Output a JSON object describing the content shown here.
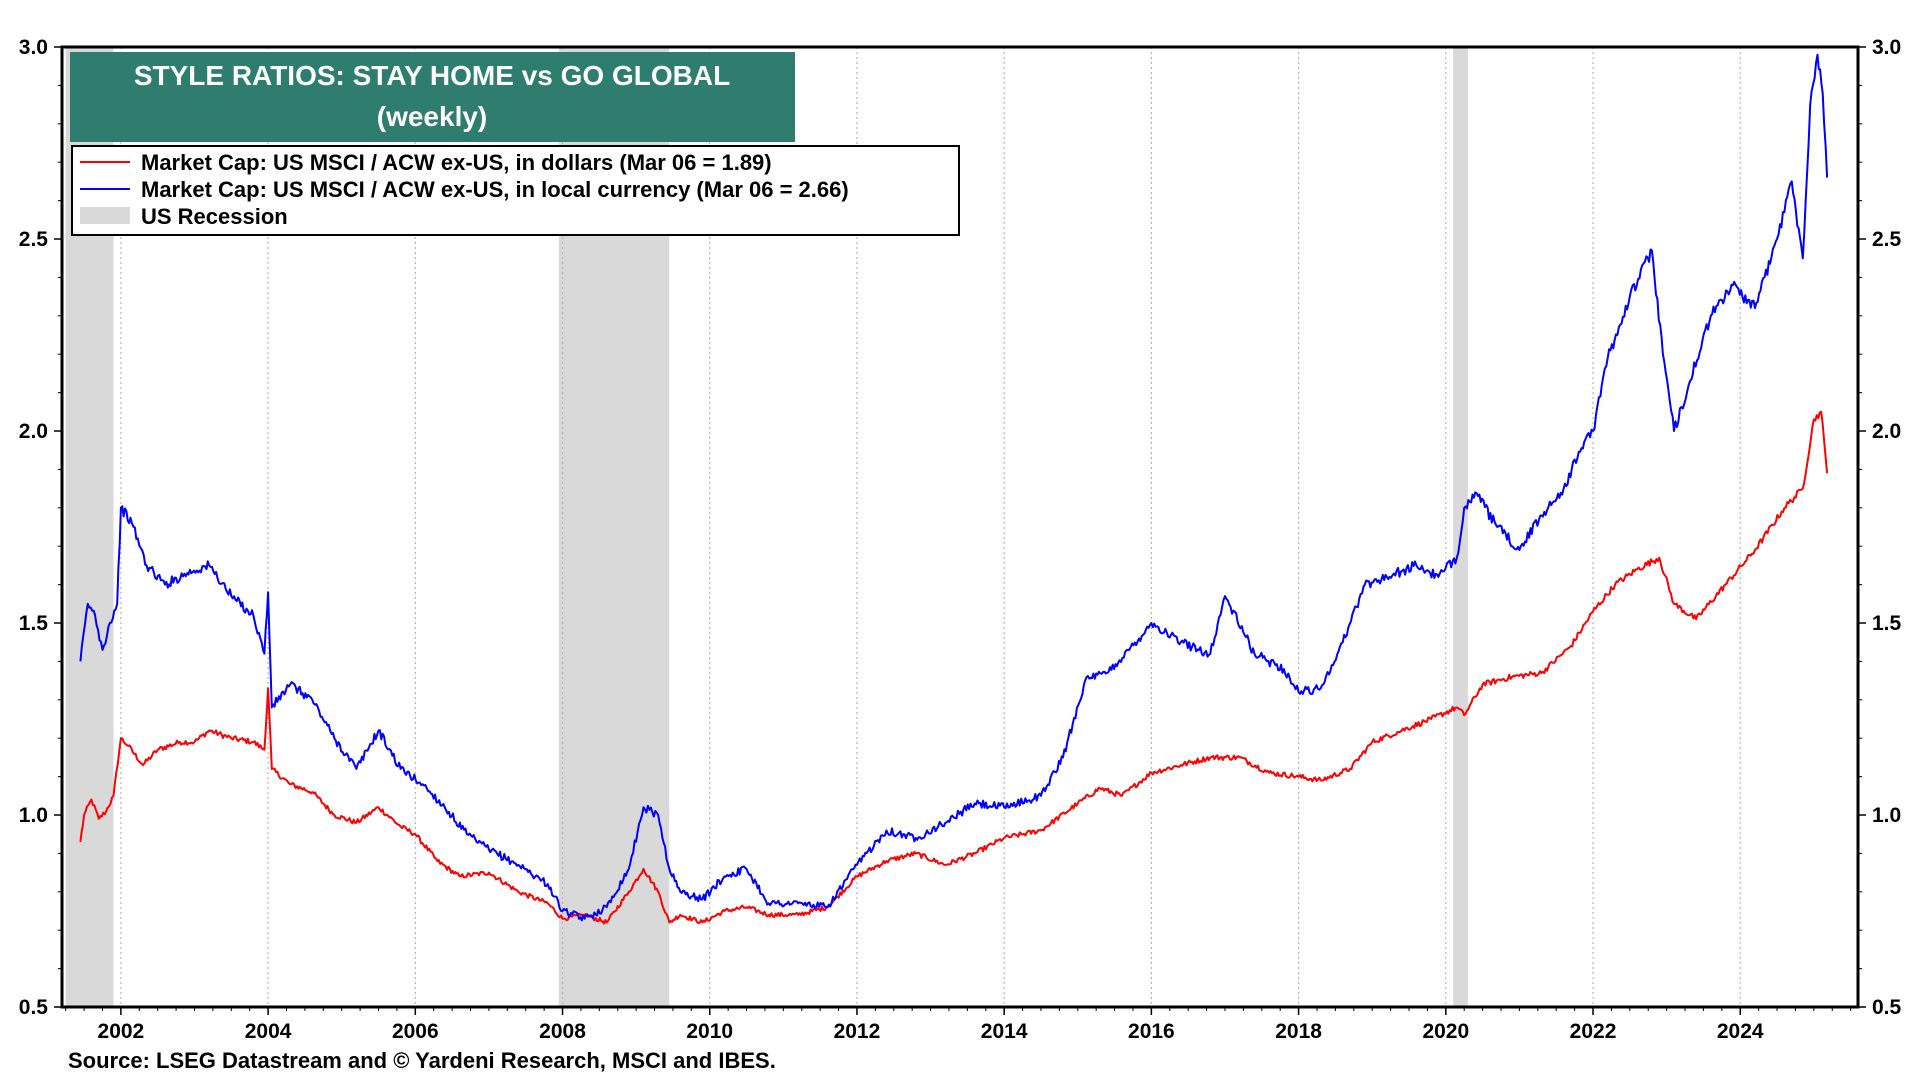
{
  "chart_data": {
    "type": "line",
    "title": "STYLE RATIOS: STAY HOME vs GO GLOBAL",
    "subtitle": "(weekly)",
    "source": "Source: LSEG Datastream and © Yardeni Research, MSCI and IBES.",
    "xlim": [
      2001.2,
      2025.6
    ],
    "ylim": [
      0.5,
      3.0
    ],
    "x_ticks": [
      2002,
      2004,
      2006,
      2008,
      2010,
      2012,
      2014,
      2016,
      2018,
      2020,
      2022,
      2024
    ],
    "y_ticks": [
      0.5,
      1.0,
      1.5,
      2.0,
      2.5,
      3.0
    ],
    "y_tick_labels": [
      "0.5",
      "1.0",
      "1.5",
      "2.0",
      "2.5",
      "3.0"
    ],
    "grid": "vertical dotted",
    "legend_position": "top-left",
    "recessions": [
      {
        "start": 2001.25,
        "end": 2001.9
      },
      {
        "start": 2007.95,
        "end": 2009.45
      },
      {
        "start": 2020.1,
        "end": 2020.3
      }
    ],
    "recession_label": "US Recession",
    "recession_color": "#d9d9d9",
    "series": [
      {
        "name": "Market Cap: US MSCI  / ACW ex-US, in dollars (Mar 06 = 1.89)",
        "color": "#ff0000",
        "x": [
          2001.45,
          2001.5,
          2001.6,
          2001.7,
          2001.8,
          2001.9,
          2002.0,
          2002.1,
          2002.3,
          2002.5,
          2002.8,
          2003.0,
          2003.2,
          2003.5,
          2003.8,
          2003.95,
          2004.0,
          2004.05,
          2004.3,
          2004.6,
          2004.9,
          2005.2,
          2005.5,
          2005.8,
          2006.0,
          2006.3,
          2006.6,
          2007.0,
          2007.4,
          2007.8,
          2008.0,
          2008.3,
          2008.6,
          2008.9,
          2009.1,
          2009.3,
          2009.45,
          2009.6,
          2009.9,
          2010.2,
          2010.5,
          2010.8,
          2011.2,
          2011.6,
          2012.0,
          2012.4,
          2012.8,
          2013.2,
          2013.6,
          2014.0,
          2014.5,
          2015.0,
          2015.3,
          2015.6,
          2016.0,
          2016.4,
          2016.8,
          2017.2,
          2017.6,
          2018.0,
          2018.3,
          2018.7,
          2019.0,
          2019.4,
          2019.8,
          2020.15,
          2020.25,
          2020.5,
          2020.9,
          2021.3,
          2021.7,
          2022.0,
          2022.3,
          2022.6,
          2022.9,
          2023.1,
          2023.4,
          2023.8,
          2024.2,
          2024.6,
          2024.85,
          2025.0,
          2025.1,
          2025.18
        ],
        "values": [
          0.93,
          1.0,
          1.04,
          0.99,
          1.01,
          1.05,
          1.2,
          1.18,
          1.13,
          1.17,
          1.19,
          1.19,
          1.22,
          1.2,
          1.19,
          1.17,
          1.33,
          1.12,
          1.08,
          1.06,
          1.0,
          0.98,
          1.02,
          0.97,
          0.95,
          0.88,
          0.84,
          0.85,
          0.8,
          0.77,
          0.73,
          0.74,
          0.72,
          0.8,
          0.86,
          0.8,
          0.72,
          0.74,
          0.72,
          0.75,
          0.76,
          0.74,
          0.74,
          0.76,
          0.84,
          0.88,
          0.9,
          0.87,
          0.9,
          0.94,
          0.96,
          1.03,
          1.07,
          1.05,
          1.11,
          1.13,
          1.15,
          1.15,
          1.11,
          1.1,
          1.09,
          1.12,
          1.19,
          1.22,
          1.25,
          1.28,
          1.26,
          1.34,
          1.36,
          1.37,
          1.44,
          1.53,
          1.6,
          1.64,
          1.67,
          1.55,
          1.51,
          1.6,
          1.69,
          1.8,
          1.85,
          2.03,
          2.05,
          1.89
        ]
      },
      {
        "name": "Market Cap: US MSCI  / ACW ex-US, in local currency (Mar 06 = 2.66)",
        "color": "#0000ff",
        "x": [
          2001.45,
          2001.55,
          2001.65,
          2001.75,
          2001.85,
          2001.95,
          2002.0,
          2002.15,
          2002.35,
          2002.6,
          2002.9,
          2003.2,
          2003.5,
          2003.8,
          2003.95,
          2004.0,
          2004.05,
          2004.3,
          2004.6,
          2004.9,
          2005.2,
          2005.5,
          2005.8,
          2006.1,
          2006.4,
          2006.7,
          2007.0,
          2007.4,
          2007.8,
          2008.0,
          2008.3,
          2008.6,
          2008.9,
          2009.1,
          2009.3,
          2009.45,
          2009.6,
          2009.9,
          2010.2,
          2010.5,
          2010.8,
          2011.2,
          2011.6,
          2012.0,
          2012.4,
          2012.8,
          2013.2,
          2013.6,
          2014.0,
          2014.5,
          2014.8,
          2015.1,
          2015.4,
          2015.7,
          2016.0,
          2016.4,
          2016.8,
          2017.0,
          2017.4,
          2017.8,
          2018.0,
          2018.3,
          2018.6,
          2018.9,
          2019.2,
          2019.6,
          2019.9,
          2020.15,
          2020.25,
          2020.4,
          2020.7,
          2021.0,
          2021.3,
          2021.6,
          2021.9,
          2022.0,
          2022.2,
          2022.5,
          2022.8,
          2022.95,
          2023.1,
          2023.3,
          2023.6,
          2023.9,
          2024.2,
          2024.5,
          2024.7,
          2024.85,
          2024.95,
          2025.05,
          2025.12,
          2025.18
        ],
        "values": [
          1.4,
          1.55,
          1.52,
          1.43,
          1.5,
          1.55,
          1.8,
          1.76,
          1.65,
          1.6,
          1.63,
          1.65,
          1.57,
          1.52,
          1.42,
          1.58,
          1.28,
          1.34,
          1.3,
          1.2,
          1.12,
          1.22,
          1.12,
          1.08,
          1.02,
          0.95,
          0.91,
          0.87,
          0.82,
          0.75,
          0.73,
          0.76,
          0.86,
          1.02,
          1.0,
          0.86,
          0.8,
          0.78,
          0.84,
          0.86,
          0.77,
          0.77,
          0.76,
          0.87,
          0.96,
          0.94,
          0.98,
          1.03,
          1.02,
          1.05,
          1.15,
          1.35,
          1.37,
          1.43,
          1.5,
          1.45,
          1.42,
          1.57,
          1.42,
          1.38,
          1.32,
          1.33,
          1.45,
          1.6,
          1.62,
          1.65,
          1.62,
          1.67,
          1.8,
          1.84,
          1.75,
          1.69,
          1.78,
          1.85,
          1.98,
          2.0,
          2.19,
          2.35,
          2.47,
          2.2,
          2.0,
          2.12,
          2.3,
          2.38,
          2.32,
          2.5,
          2.65,
          2.45,
          2.85,
          2.98,
          2.88,
          2.66
        ]
      }
    ]
  }
}
